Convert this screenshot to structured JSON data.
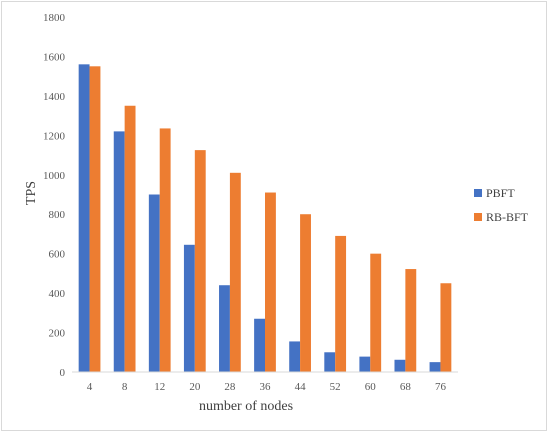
{
  "chart_data": {
    "type": "bar",
    "xlabel": "number of nodes",
    "ylabel": "TPS",
    "categories": [
      "4",
      "8",
      "12",
      "20",
      "28",
      "36",
      "44",
      "52",
      "60",
      "68",
      "76"
    ],
    "series": [
      {
        "name": "PBFT",
        "color": "#4472c4",
        "values": [
          1560,
          1220,
          900,
          645,
          440,
          270,
          155,
          100,
          78,
          62,
          50
        ]
      },
      {
        "name": "RB-BFT",
        "color": "#ed7d31",
        "values": [
          1550,
          1350,
          1235,
          1125,
          1010,
          910,
          800,
          690,
          600,
          522,
          450
        ]
      }
    ],
    "ylim": [
      0,
      1800
    ],
    "yticks": [
      0,
      200,
      400,
      600,
      800,
      1000,
      1200,
      1400,
      1600,
      1800
    ],
    "grid": false,
    "legend_position": "right"
  }
}
